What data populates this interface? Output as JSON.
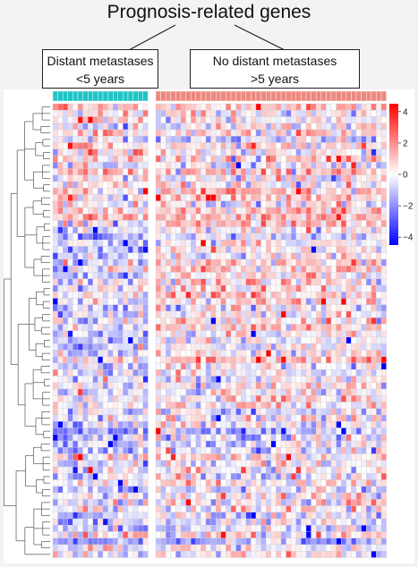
{
  "header": {
    "title": "Prognosis-related genes",
    "groups": [
      {
        "line1": "Distant metastases",
        "line2": "<5 years"
      },
      {
        "line1": "No distant metastases",
        "line2": ">5 years"
      }
    ]
  },
  "chart_data": {
    "type": "heatmap",
    "title": "Prognosis-related genes",
    "column_groups": [
      {
        "label": "Distant metastases <5 years",
        "color": "#22c4c6",
        "n_samples": 19
      },
      {
        "label": "No distant metastases >5 years",
        "color": "#ec8a80",
        "n_samples": 46
      }
    ],
    "n_rows": 70,
    "color_scale": {
      "min": -4.5,
      "max": 4.5,
      "low_color": "#0000ff",
      "mid_color": "#ffffff",
      "high_color": "#ff0000",
      "ticks": [
        "4",
        "2",
        "0",
        "−2",
        "−4"
      ]
    },
    "row_dendrogram": true,
    "column_dendrogram": false,
    "grid": true
  }
}
